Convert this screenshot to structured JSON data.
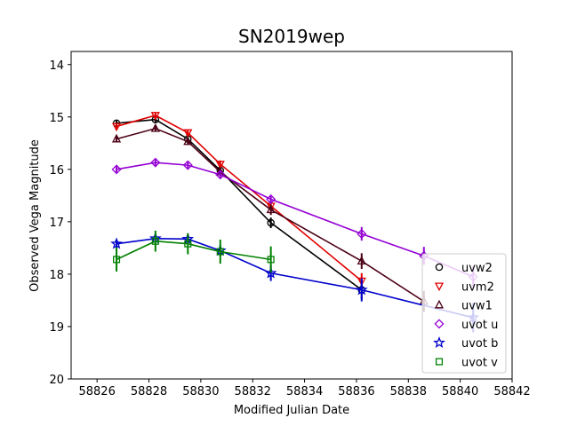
{
  "chart_data": {
    "type": "line",
    "title": "SN2019wep",
    "xlabel": "Modified Julian Date",
    "ylabel": "Observed Vega Magnitude",
    "xlim": [
      58825,
      58842
    ],
    "ylim": [
      20,
      13.75
    ],
    "y_inverted": true,
    "xticks": [
      58826,
      58828,
      58830,
      58832,
      58834,
      58836,
      58838,
      58840,
      58842
    ],
    "yticks": [
      14,
      15,
      16,
      17,
      18,
      19,
      20
    ],
    "grid": false,
    "legend_position": "lower-right",
    "series": [
      {
        "name": "uvw2",
        "color": "#000000",
        "marker": "circle",
        "x": [
          58826.75,
          58828.25,
          58829.5,
          58830.75,
          58832.7,
          58836.2
        ],
        "y": [
          15.12,
          15.05,
          15.42,
          16.02,
          17.02,
          18.3
        ],
        "err": [
          0.06,
          0.06,
          0.06,
          0.07,
          0.1,
          0.18
        ]
      },
      {
        "name": "uvm2",
        "color": "#e00000",
        "marker": "triangle-down",
        "x": [
          58826.75,
          58828.25,
          58829.5,
          58830.75,
          58832.7,
          58836.2
        ],
        "y": [
          15.18,
          14.97,
          15.3,
          15.9,
          16.7,
          18.13
        ],
        "err": [
          0.06,
          0.06,
          0.06,
          0.07,
          0.1,
          0.15
        ]
      },
      {
        "name": "uvw1",
        "color": "#4b0014",
        "marker": "triangle-up",
        "x": [
          58826.75,
          58828.25,
          58829.5,
          58830.75,
          58832.7,
          58836.2,
          58838.6
        ],
        "y": [
          15.42,
          15.22,
          15.47,
          16.05,
          16.77,
          17.75,
          18.52
        ],
        "err": [
          0.06,
          0.06,
          0.06,
          0.07,
          0.1,
          0.15,
          0.2
        ]
      },
      {
        "name": "uvot u",
        "color": "#9400d3",
        "marker": "diamond",
        "x": [
          58826.75,
          58828.25,
          58829.5,
          58830.75,
          58832.7,
          58836.2,
          58838.6,
          58840.5
        ],
        "y": [
          16.0,
          15.87,
          15.92,
          16.1,
          16.57,
          17.23,
          17.65,
          18.05
        ],
        "err": [
          0.06,
          0.06,
          0.06,
          0.07,
          0.08,
          0.13,
          0.17,
          0.2
        ]
      },
      {
        "name": "uvot b",
        "color": "#0000cc",
        "marker": "star",
        "x": [
          58826.75,
          58828.25,
          58829.5,
          58830.75,
          58832.7,
          58836.2,
          58840.5
        ],
        "y": [
          17.42,
          17.32,
          17.33,
          17.55,
          17.98,
          18.3,
          18.83
        ],
        "err": [
          0.08,
          0.08,
          0.08,
          0.1,
          0.15,
          0.22,
          0.28
        ]
      },
      {
        "name": "uvot v",
        "color": "#008000",
        "marker": "square",
        "x": [
          58826.75,
          58828.25,
          58829.5,
          58830.75,
          58832.7
        ],
        "y": [
          17.72,
          17.37,
          17.42,
          17.57,
          17.72
        ],
        "err": [
          0.23,
          0.2,
          0.2,
          0.23,
          0.25
        ]
      }
    ]
  }
}
